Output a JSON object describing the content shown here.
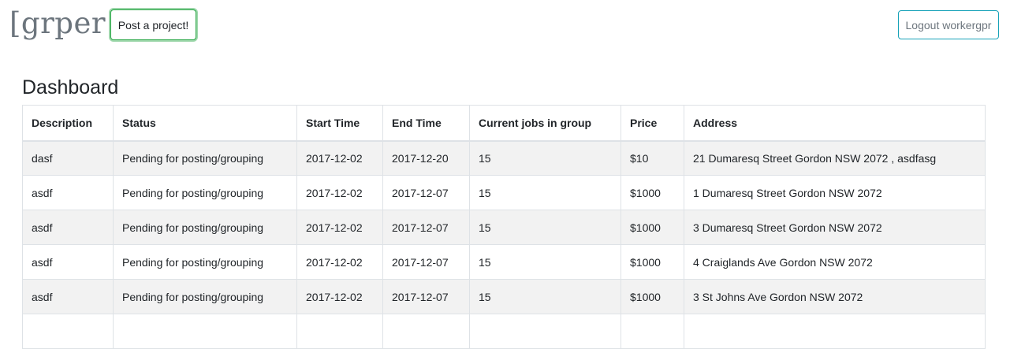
{
  "header": {
    "brand": "[grper",
    "post_button": "Post a project!",
    "logout_button": "Logout workergpr"
  },
  "main": {
    "title": "Dashboard",
    "table": {
      "columns": [
        "Description",
        "Status",
        "Start Time",
        "End Time",
        "Current jobs in group",
        "Price",
        "Address"
      ],
      "rows": [
        [
          "dasf",
          "Pending for posting/grouping",
          "2017-12-02",
          "2017-12-20",
          "15",
          "$10",
          "21 Dumaresq Street Gordon NSW 2072 , asdfasg"
        ],
        [
          "asdf",
          "Pending for posting/grouping",
          "2017-12-02",
          "2017-12-07",
          "15",
          "$1000",
          "1 Dumaresq Street Gordon NSW 2072"
        ],
        [
          "asdf",
          "Pending for posting/grouping",
          "2017-12-02",
          "2017-12-07",
          "15",
          "$1000",
          "3 Dumaresq Street Gordon NSW 2072"
        ],
        [
          "asdf",
          "Pending for posting/grouping",
          "2017-12-02",
          "2017-12-07",
          "15",
          "$1000",
          "4 Craiglands Ave Gordon NSW 2072"
        ],
        [
          "asdf",
          "Pending for posting/grouping",
          "2017-12-02",
          "2017-12-07",
          "15",
          "$1000",
          "3 St Johns Ave Gordon NSW 2072"
        ],
        [
          "",
          "",
          "",
          "",
          "",
          "",
          ""
        ]
      ]
    }
  },
  "colors": {
    "post_button_border": "#28a745",
    "logout_button_border": "#17a2b8",
    "stripe": "#f2f2f2"
  }
}
